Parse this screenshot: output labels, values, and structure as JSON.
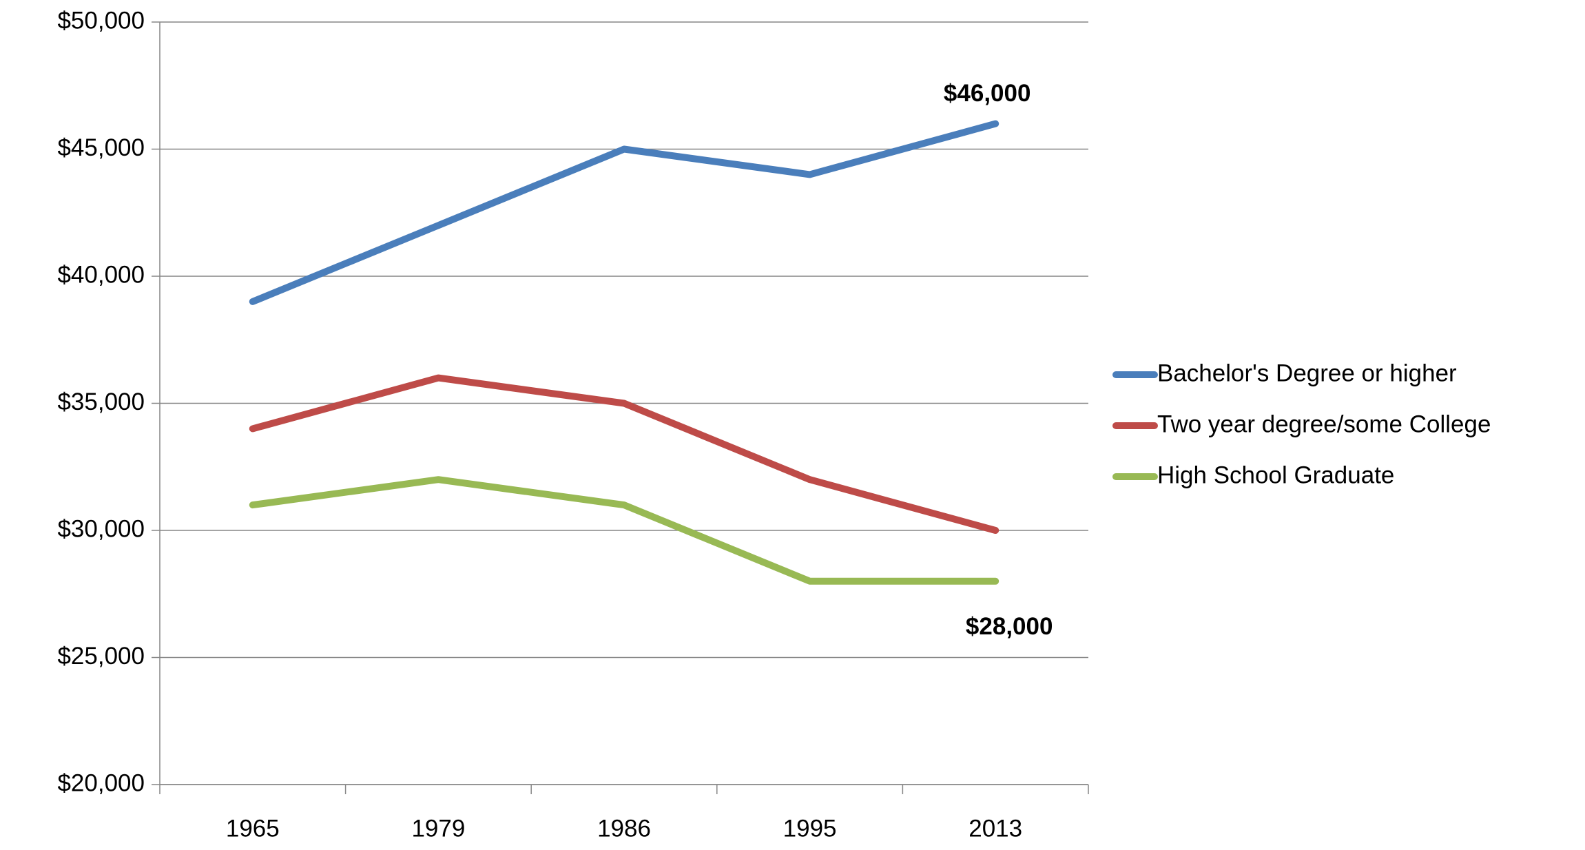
{
  "chart_data": {
    "type": "line",
    "categories": [
      "1965",
      "1979",
      "1986",
      "1995",
      "2013"
    ],
    "series": [
      {
        "name": "Bachelor's Degree or higher",
        "color": "#4a7ebb",
        "values": [
          39000,
          42000,
          45000,
          44000,
          46000
        ],
        "value_labels": [
          null,
          null,
          null,
          null,
          "$46,000"
        ]
      },
      {
        "name": "Two year degree/some College",
        "color": "#be4b48",
        "values": [
          34000,
          36000,
          35000,
          32000,
          30000
        ]
      },
      {
        "name": "High School Graduate",
        "color": "#98b954",
        "values": [
          31000,
          32000,
          31000,
          28000,
          28000
        ],
        "value_labels": [
          null,
          null,
          null,
          null,
          "$28,000"
        ]
      }
    ],
    "ylim": [
      20000,
      50000
    ],
    "yticks": [
      {
        "value": 20000,
        "label": "$20,000"
      },
      {
        "value": 25000,
        "label": "$25,000"
      },
      {
        "value": 30000,
        "label": "$30,000"
      },
      {
        "value": 35000,
        "label": "$35,000"
      },
      {
        "value": 40000,
        "label": "$40,000"
      },
      {
        "value": 45000,
        "label": "$45,000"
      },
      {
        "value": 50000,
        "label": "$50,000"
      }
    ],
    "grid": true,
    "legend": "right"
  }
}
